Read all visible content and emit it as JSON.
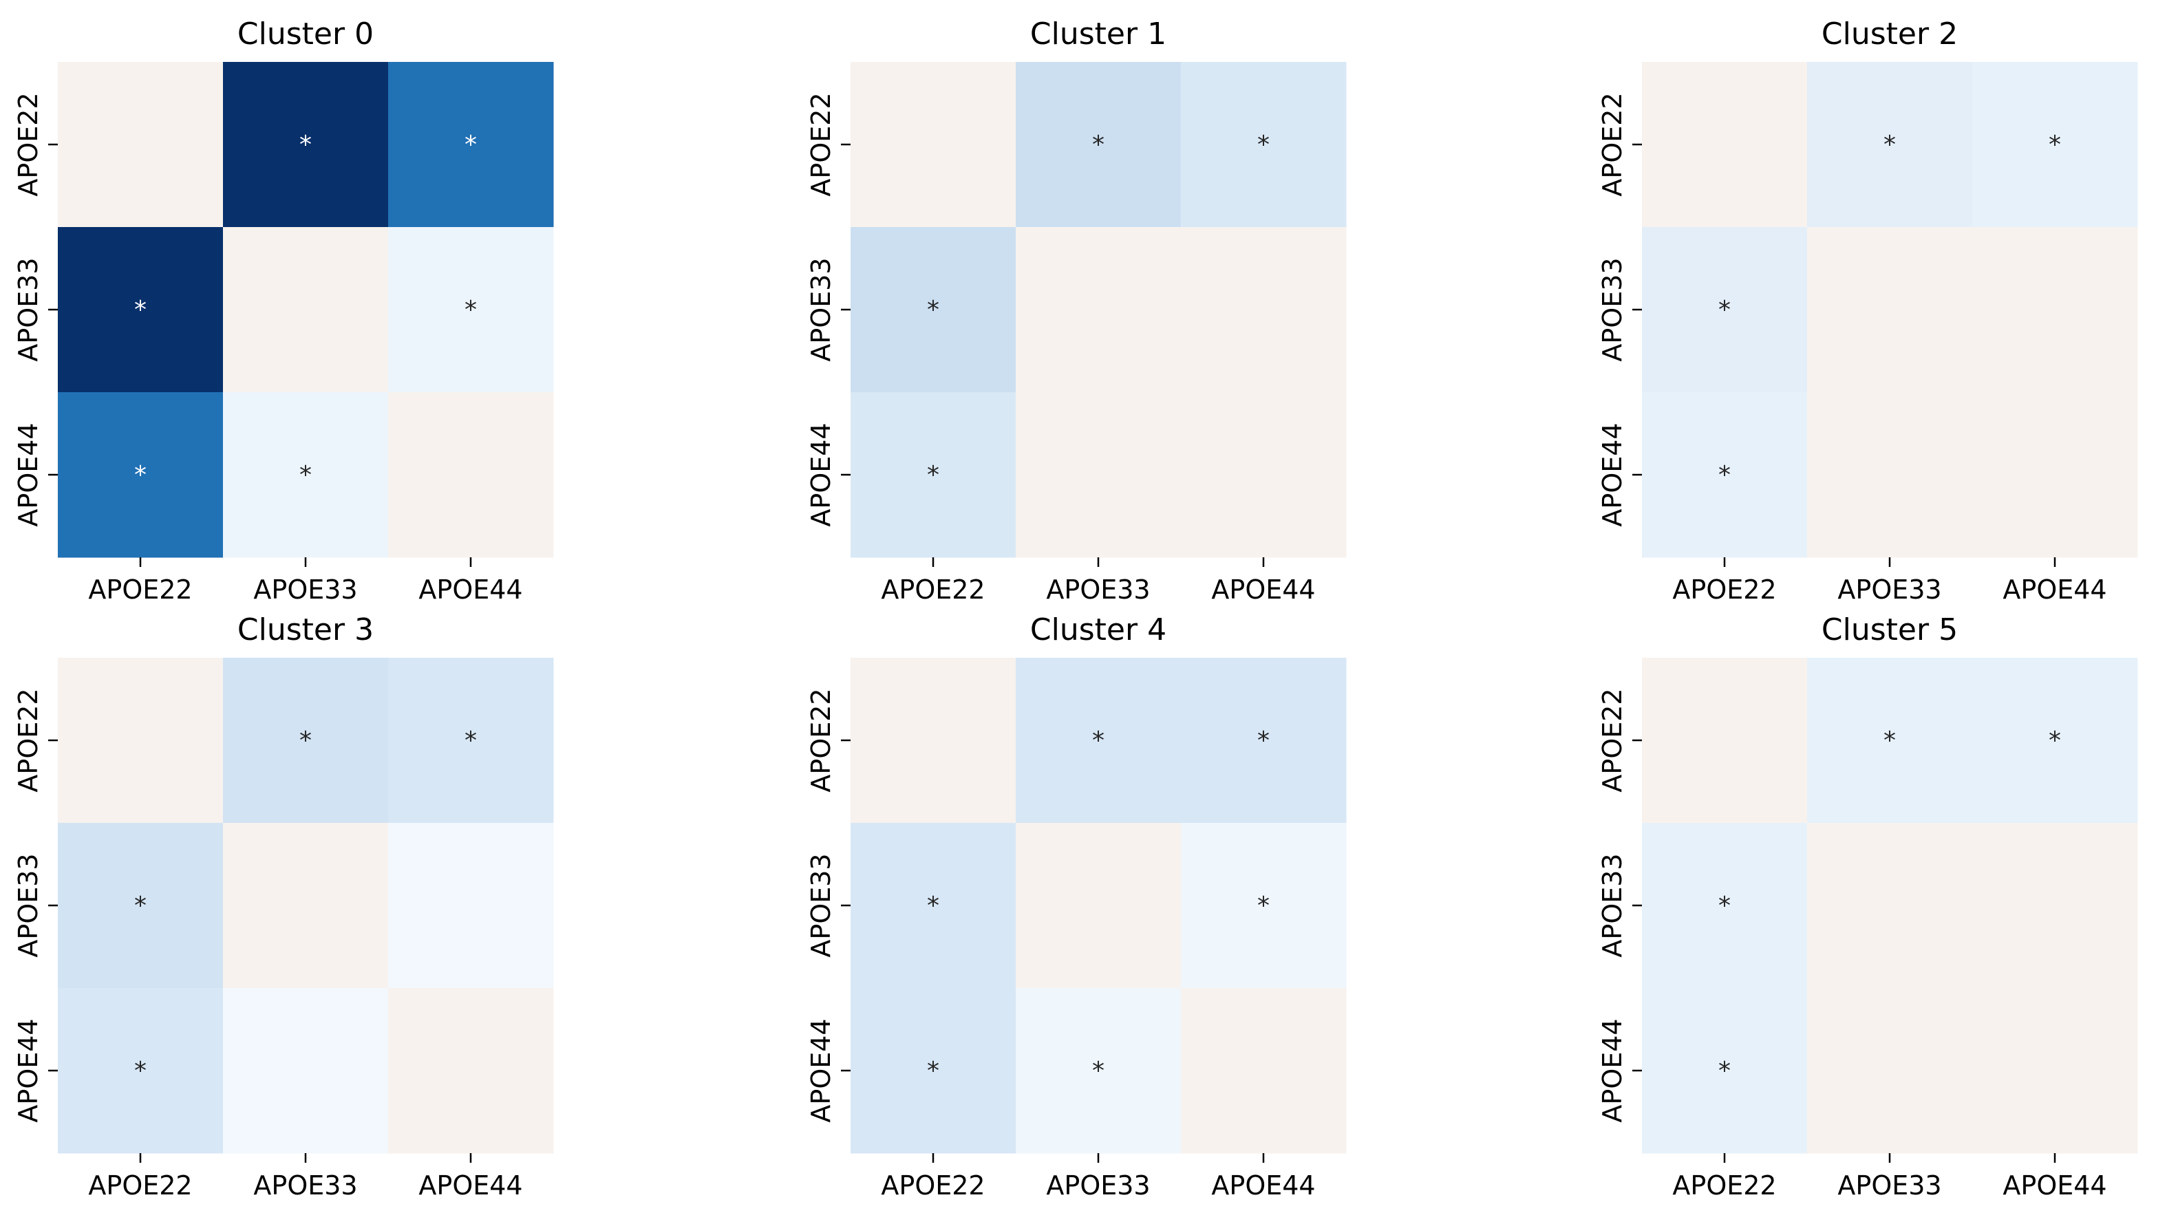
{
  "chart_data": [
    {
      "type": "heatmap",
      "title": "Cluster 0",
      "x_categories": [
        "APOE22",
        "APOE33",
        "APOE44"
      ],
      "y_categories": [
        "APOE22",
        "APOE33",
        "APOE44"
      ],
      "colormap": "Blues",
      "color_range": [
        0,
        1
      ],
      "values": [
        [
          0.0,
          1.0,
          0.75
        ],
        [
          1.0,
          0.0,
          0.05
        ],
        [
          0.75,
          0.05,
          0.0
        ]
      ],
      "significant": [
        [
          false,
          true,
          true
        ],
        [
          true,
          false,
          true
        ],
        [
          true,
          true,
          false
        ]
      ],
      "marker": "*"
    },
    {
      "type": "heatmap",
      "title": "Cluster 1",
      "x_categories": [
        "APOE22",
        "APOE33",
        "APOE44"
      ],
      "y_categories": [
        "APOE22",
        "APOE33",
        "APOE44"
      ],
      "colormap": "Blues",
      "color_range": [
        0,
        1
      ],
      "values": [
        [
          0.0,
          0.22,
          0.15
        ],
        [
          0.22,
          0.0,
          0.0
        ],
        [
          0.15,
          0.0,
          0.0
        ]
      ],
      "significant": [
        [
          false,
          true,
          true
        ],
        [
          true,
          false,
          false
        ],
        [
          true,
          false,
          false
        ]
      ],
      "marker": "*"
    },
    {
      "type": "heatmap",
      "title": "Cluster 2",
      "x_categories": [
        "APOE22",
        "APOE33",
        "APOE44"
      ],
      "y_categories": [
        "APOE22",
        "APOE33",
        "APOE44"
      ],
      "colormap": "Blues",
      "color_range": [
        0,
        1
      ],
      "values": [
        [
          0.0,
          0.1,
          0.08
        ],
        [
          0.1,
          0.0,
          0.0
        ],
        [
          0.08,
          0.0,
          0.0
        ]
      ],
      "significant": [
        [
          false,
          true,
          true
        ],
        [
          true,
          false,
          false
        ],
        [
          true,
          false,
          false
        ]
      ],
      "marker": "*"
    },
    {
      "type": "heatmap",
      "title": "Cluster 3",
      "x_categories": [
        "APOE22",
        "APOE33",
        "APOE44"
      ],
      "y_categories": [
        "APOE22",
        "APOE33",
        "APOE44"
      ],
      "colormap": "Blues",
      "color_range": [
        0,
        1
      ],
      "values": [
        [
          0.0,
          0.19,
          0.16
        ],
        [
          0.19,
          0.0,
          0.02
        ],
        [
          0.16,
          0.02,
          0.0
        ]
      ],
      "significant": [
        [
          false,
          true,
          true
        ],
        [
          true,
          false,
          false
        ],
        [
          true,
          false,
          false
        ]
      ],
      "marker": "*"
    },
    {
      "type": "heatmap",
      "title": "Cluster 4",
      "x_categories": [
        "APOE22",
        "APOE33",
        "APOE44"
      ],
      "y_categories": [
        "APOE22",
        "APOE33",
        "APOE44"
      ],
      "colormap": "Blues",
      "color_range": [
        0,
        1
      ],
      "values": [
        [
          0.0,
          0.16,
          0.16
        ],
        [
          0.16,
          0.0,
          0.04
        ],
        [
          0.16,
          0.04,
          0.0
        ]
      ],
      "significant": [
        [
          false,
          true,
          true
        ],
        [
          true,
          false,
          true
        ],
        [
          true,
          true,
          false
        ]
      ],
      "marker": "*"
    },
    {
      "type": "heatmap",
      "title": "Cluster 5",
      "x_categories": [
        "APOE22",
        "APOE33",
        "APOE44"
      ],
      "y_categories": [
        "APOE22",
        "APOE33",
        "APOE44"
      ],
      "colormap": "Blues",
      "color_range": [
        0,
        1
      ],
      "values": [
        [
          0.0,
          0.08,
          0.08
        ],
        [
          0.08,
          0.0,
          0.0
        ],
        [
          0.08,
          0.0,
          0.0
        ]
      ],
      "significant": [
        [
          false,
          true,
          true
        ],
        [
          true,
          false,
          false
        ],
        [
          true,
          false,
          false
        ]
      ],
      "marker": "*"
    }
  ],
  "colors": {
    "zero": "#f7f2ee",
    "colormap_stops": [
      "#f7fbff",
      "#deebf7",
      "#c6dbef",
      "#9ecae1",
      "#6baed6",
      "#4292c6",
      "#2171b5",
      "#08519c",
      "#08306b"
    ]
  }
}
